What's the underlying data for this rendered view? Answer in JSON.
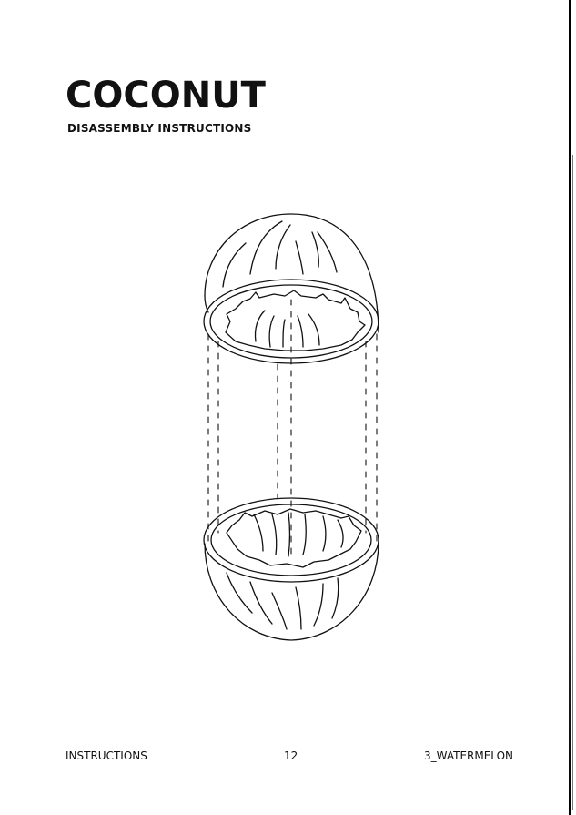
{
  "header": {
    "title": "COCONUT",
    "subtitle": "DISASSEMBLY INSTRUCTIONS"
  },
  "illustration": {
    "icon": "coconut-halves-exploded-view-icon"
  },
  "footer": {
    "left": "INSTRUCTIONS",
    "page_number": "12",
    "right": "3_WATERMELON"
  }
}
